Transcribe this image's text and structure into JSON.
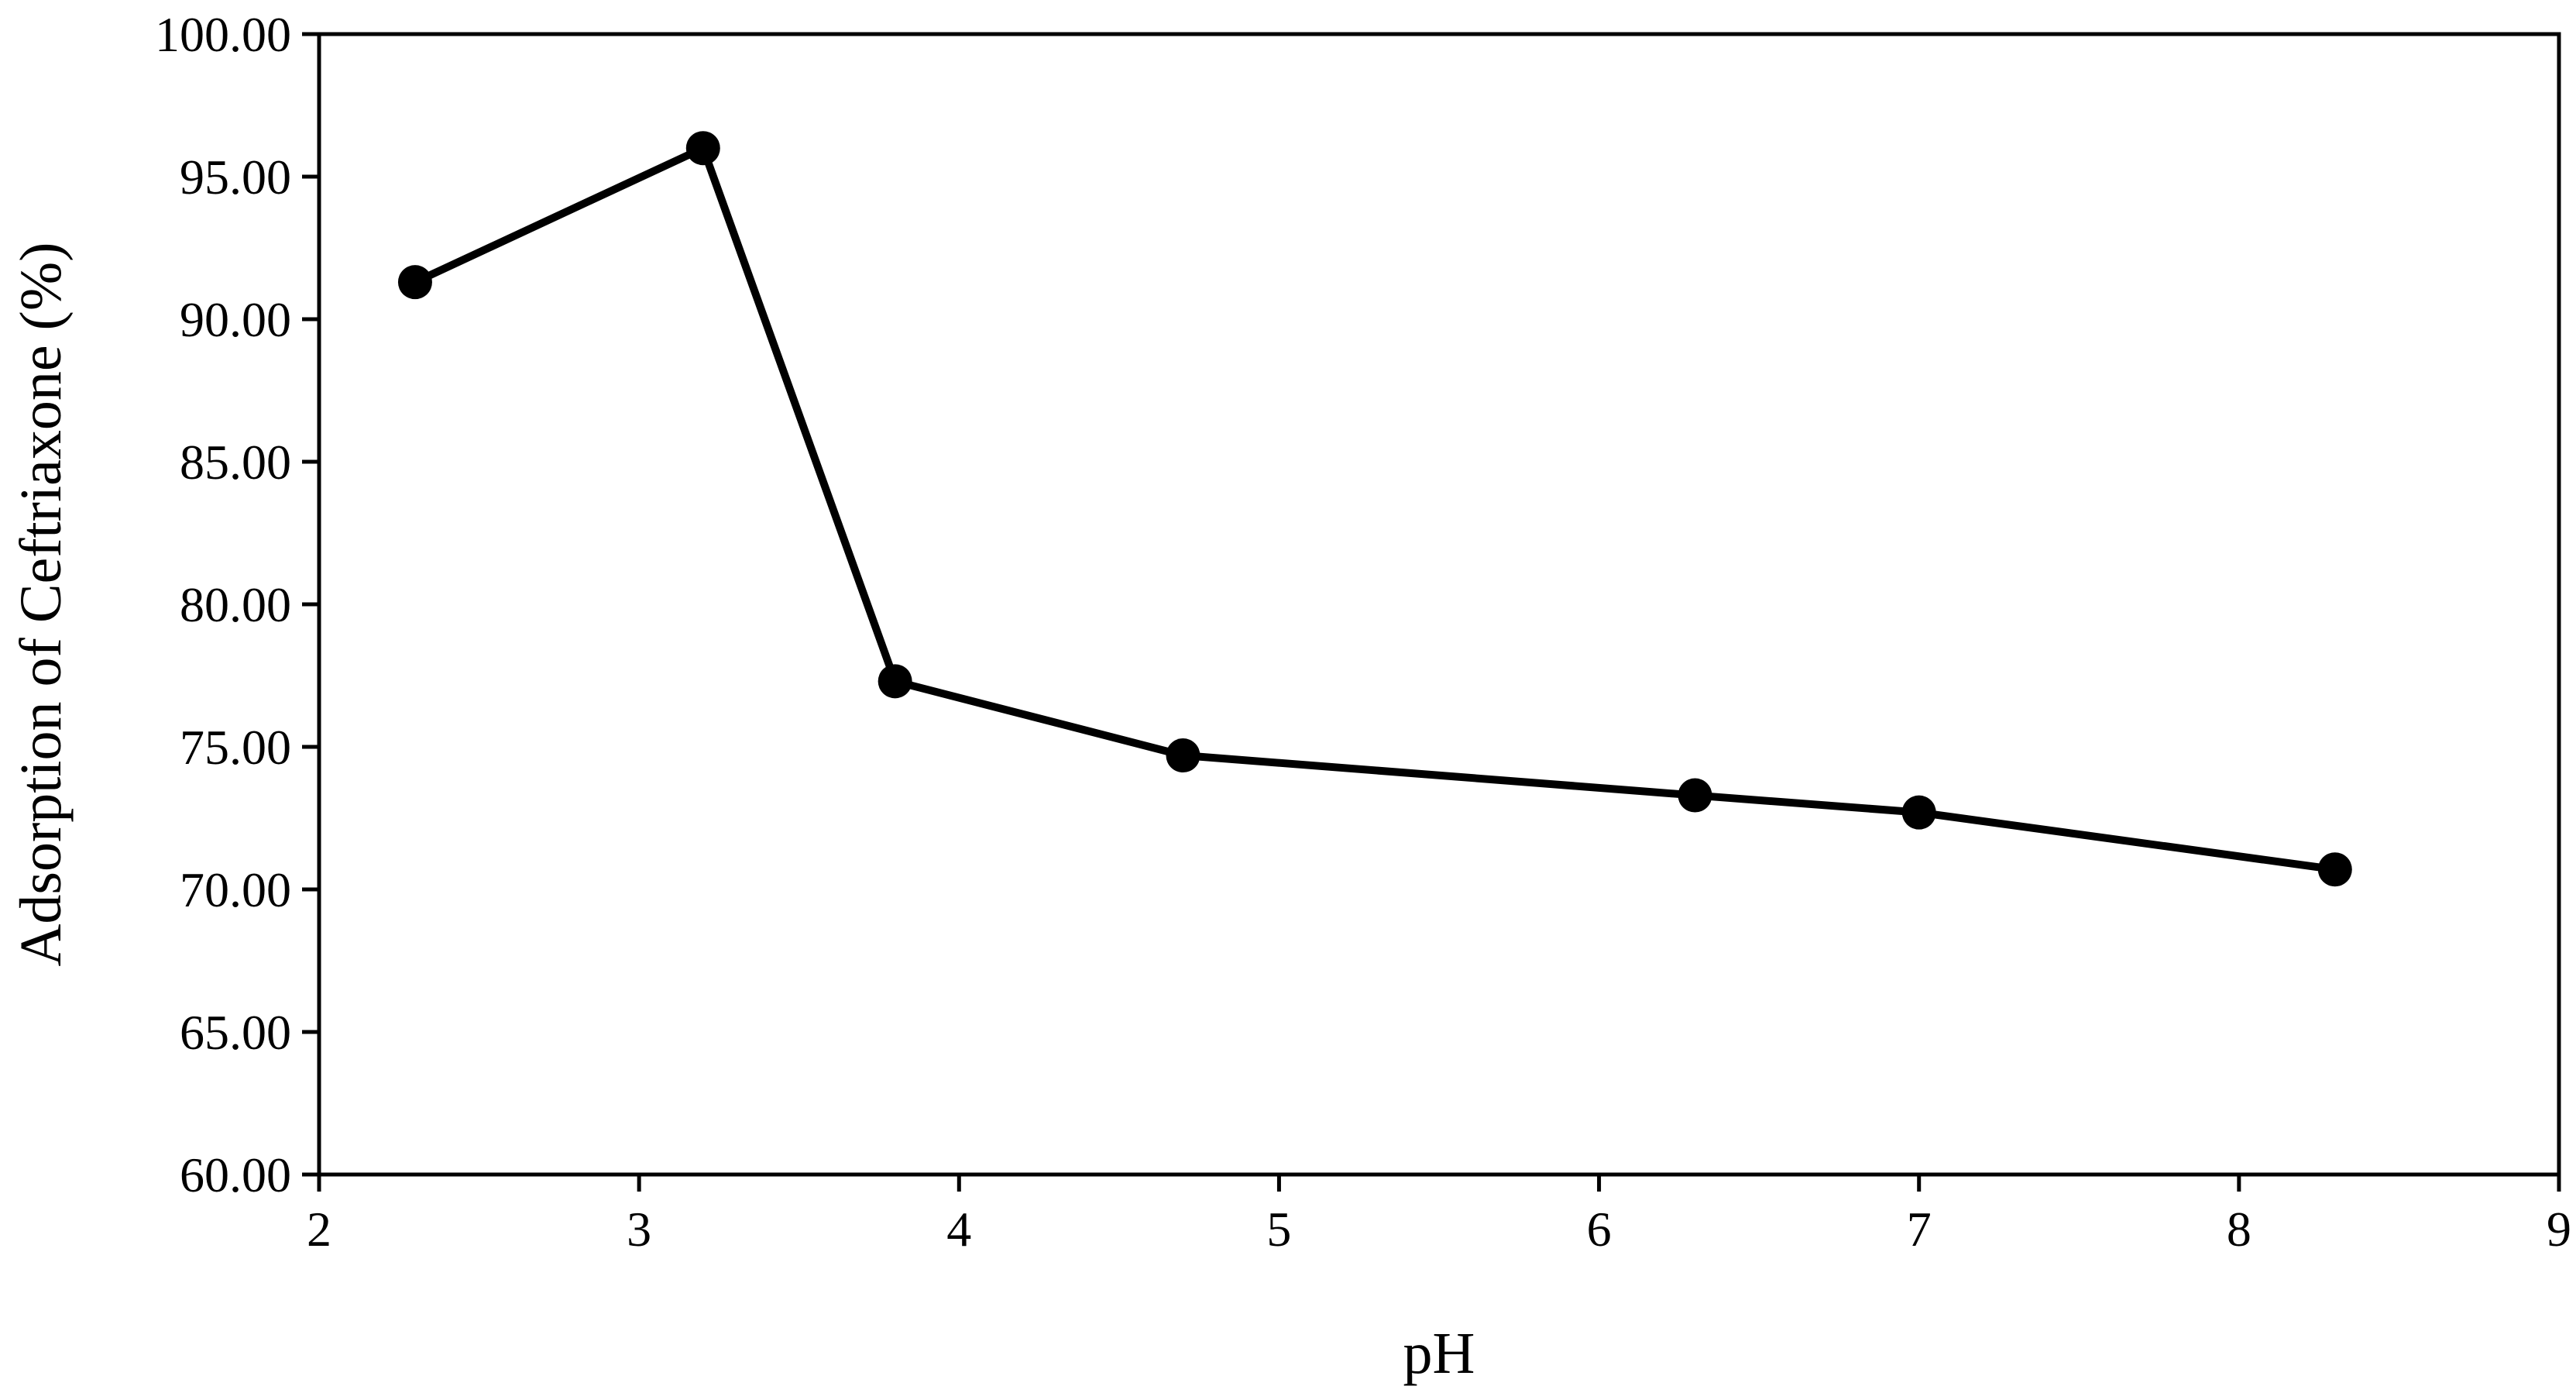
{
  "chart_data": {
    "type": "line",
    "title": "",
    "xlabel": "pH",
    "ylabel": "Adsorption of Ceftriaxone (%)",
    "xlim": [
      2,
      9
    ],
    "ylim": [
      60,
      100
    ],
    "x_ticks": [
      2,
      3,
      4,
      5,
      6,
      7,
      8,
      9
    ],
    "y_ticks": [
      60,
      65,
      70,
      75,
      80,
      85,
      90,
      95,
      100
    ],
    "x_tick_labels": [
      "2",
      "3",
      "4",
      "5",
      "6",
      "7",
      "8",
      "9"
    ],
    "y_tick_labels": [
      "60.00",
      "65.00",
      "70.00",
      "75.00",
      "80.00",
      "85.00",
      "90.00",
      "95.00",
      "100.00"
    ],
    "grid": false,
    "legend": "none",
    "series": [
      {
        "x": [
          2.3,
          3.2,
          3.8,
          4.7,
          6.3,
          7.0,
          8.3
        ],
        "y": [
          91.3,
          96.0,
          77.3,
          74.7,
          73.3,
          72.7,
          70.7
        ],
        "color": "#000000",
        "marker": "circle"
      }
    ]
  }
}
